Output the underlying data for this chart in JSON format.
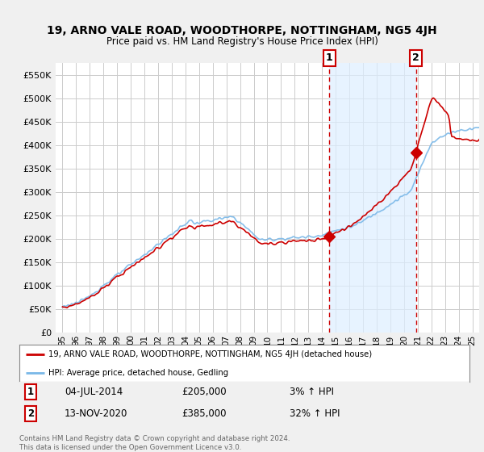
{
  "title": "19, ARNO VALE ROAD, WOODTHORPE, NOTTINGHAM, NG5 4JH",
  "subtitle": "Price paid vs. HM Land Registry's House Price Index (HPI)",
  "ytick_values": [
    0,
    50000,
    100000,
    150000,
    200000,
    250000,
    300000,
    350000,
    400000,
    450000,
    500000,
    550000
  ],
  "ylim": [
    0,
    575000
  ],
  "sale1_year": 2014.54,
  "sale1_price": 205000,
  "sale2_year": 2020.87,
  "sale2_price": 385000,
  "legend_line1": "19, ARNO VALE ROAD, WOODTHORPE, NOTTINGHAM, NG5 4JH (detached house)",
  "legend_line2": "HPI: Average price, detached house, Gedling",
  "annotation1": [
    "1",
    "04-JUL-2014",
    "£205,000",
    "3% ↑ HPI"
  ],
  "annotation2": [
    "2",
    "13-NOV-2020",
    "£385,000",
    "32% ↑ HPI"
  ],
  "footer": "Contains HM Land Registry data © Crown copyright and database right 2024.\nThis data is licensed under the Open Government Licence v3.0.",
  "hpi_color": "#7ab8e8",
  "sale_color": "#cc0000",
  "vline_color": "#cc0000",
  "shade_color": "#ddeeff",
  "bg_color": "#f0f0f0",
  "plot_bg_color": "#ffffff",
  "grid_color": "#cccccc",
  "xstart": 1995.0,
  "xend": 2025.5
}
